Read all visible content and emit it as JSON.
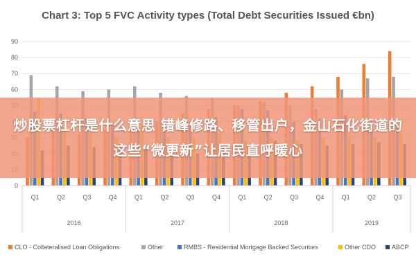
{
  "chart_data": {
    "type": "bar",
    "title": "Chart 3: Top 5 FVC Activity types (Total Debt Securities Issued €bn)",
    "categories": [
      "Q1",
      "Q2",
      "Q3",
      "Q4",
      "Q1",
      "Q2",
      "Q3",
      "Q4",
      "Q1",
      "Q2",
      "Q3",
      "Q4",
      "Q1",
      "Q2",
      "Q3"
    ],
    "years": [
      {
        "label": "2016",
        "count": 4
      },
      {
        "label": "2017",
        "count": 4
      },
      {
        "label": "2018",
        "count": 4
      },
      {
        "label": "2019",
        "count": 3
      }
    ],
    "ylim": [
      0,
      90
    ],
    "yticks": [
      0,
      10,
      20,
      30,
      40,
      50,
      60,
      70,
      80,
      90
    ],
    "grid": true,
    "legend_position": "bottom",
    "series": [
      {
        "name": "CLO - Collateralised Loan Obligations",
        "color": "#ED7D31",
        "values": [
          30,
          35,
          32,
          35,
          36,
          40,
          45,
          48,
          50,
          53,
          58,
          62,
          68,
          76,
          84
        ]
      },
      {
        "name": "Other",
        "color": "#A5A5A5",
        "values": [
          69,
          62,
          59,
          60,
          62,
          58,
          56,
          55,
          50,
          52,
          50,
          48,
          60,
          67,
          68
        ]
      },
      {
        "name": "RMBS - Residential Mortgage Backed Securities",
        "color": "#4472C4",
        "values": [
          46,
          45,
          42,
          38,
          36,
          35,
          40,
          43,
          48,
          47,
          40,
          42,
          44,
          40,
          38
        ]
      },
      {
        "name": "Other CDO",
        "color": "#FFC000",
        "values": [
          55,
          36,
          33,
          30,
          38,
          30,
          30,
          33,
          28,
          30,
          28,
          30,
          32,
          30,
          33
        ]
      },
      {
        "name": "ABCP",
        "color": "#264478",
        "values": [
          22,
          25,
          24,
          26,
          25,
          22,
          20,
          24,
          26,
          28,
          26,
          25,
          26,
          27,
          26
        ]
      }
    ]
  },
  "overlay": {
    "text": "炒股票杠杆是什么意思 错峰修路、移管出户，金山石化街道的这些“微更新”让居民直呼暖心"
  }
}
